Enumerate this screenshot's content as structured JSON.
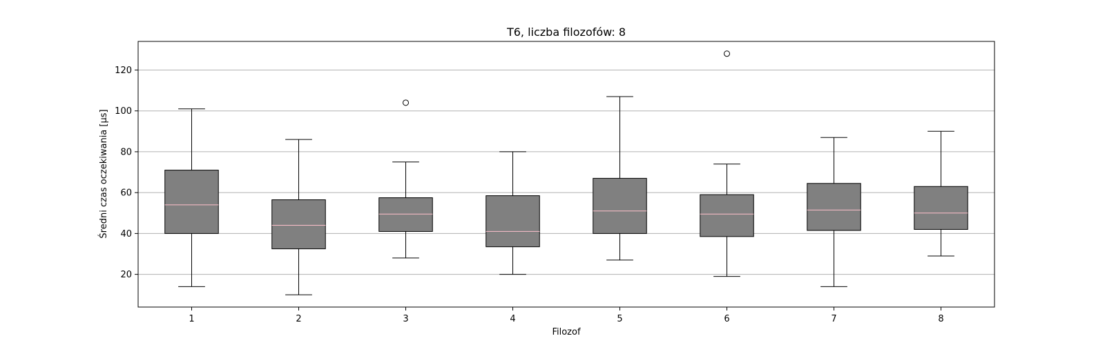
{
  "chart_data": {
    "type": "box",
    "title": "T6, liczba filozofów: 8",
    "xlabel": "Filozof",
    "ylabel": "Średni czas oczekiwania [µs]",
    "categories": [
      "1",
      "2",
      "3",
      "4",
      "5",
      "6",
      "7",
      "8"
    ],
    "yticks": [
      20,
      40,
      60,
      80,
      100,
      120
    ],
    "ylim": [
      4,
      134
    ],
    "grid": "y",
    "boxes": [
      {
        "whisker_low": 14,
        "q1": 40,
        "median": 54,
        "q3": 71,
        "whisker_high": 101,
        "outliers": []
      },
      {
        "whisker_low": 10,
        "q1": 32.5,
        "median": 44,
        "q3": 56.5,
        "whisker_high": 86,
        "outliers": []
      },
      {
        "whisker_low": 28,
        "q1": 41,
        "median": 49.5,
        "q3": 57.5,
        "whisker_high": 75,
        "outliers": [
          104
        ]
      },
      {
        "whisker_low": 20,
        "q1": 33.5,
        "median": 41,
        "q3": 58.5,
        "whisker_high": 80,
        "outliers": []
      },
      {
        "whisker_low": 27,
        "q1": 40,
        "median": 51,
        "q3": 67,
        "whisker_high": 107,
        "outliers": []
      },
      {
        "whisker_low": 19,
        "q1": 38.5,
        "median": 49.5,
        "q3": 59,
        "whisker_high": 74,
        "outliers": [
          128
        ]
      },
      {
        "whisker_low": 14,
        "q1": 41.5,
        "median": 51.5,
        "q3": 64.5,
        "whisker_high": 87,
        "outliers": []
      },
      {
        "whisker_low": 29,
        "q1": 42,
        "median": 50,
        "q3": 63,
        "whisker_high": 90,
        "outliers": []
      }
    ],
    "colors": {
      "box_fill": "#808080",
      "median": "#ffc0cb",
      "grid": "#b0b0b0",
      "stroke": "#000000"
    }
  }
}
